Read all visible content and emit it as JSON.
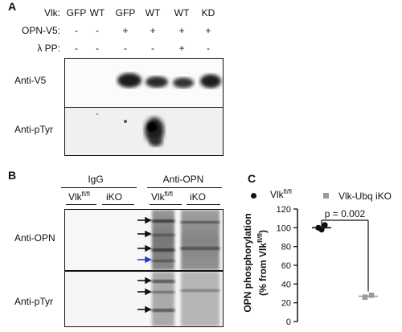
{
  "panel_a": {
    "letter": "A",
    "row_labels": {
      "vlk": "Vlk:",
      "opn": "OPN-V5:",
      "pp": "λ PP:"
    },
    "lanes": [
      {
        "vlk": "GFP",
        "opn": "-",
        "pp": "-"
      },
      {
        "vlk": "WT",
        "opn": "-",
        "pp": "-"
      },
      {
        "vlk": "GFP",
        "opn": "+",
        "pp": "-"
      },
      {
        "vlk": "WT",
        "opn": "+",
        "pp": "-"
      },
      {
        "vlk": "WT",
        "opn": "+",
        "pp": "+"
      },
      {
        "vlk": "KD",
        "opn": "+",
        "pp": "-"
      }
    ],
    "blot_labels": {
      "v5": "Anti-V5",
      "ptyr": "Anti-pTyr"
    }
  },
  "panel_b": {
    "letter": "B",
    "group_igg": "IgG",
    "group_anti_opn": "Anti-OPN",
    "sub_vlk": "Vlk",
    "sub_vlk_sup": "fl/fl",
    "sub_iko": "iKO",
    "blot_labels": {
      "opn": "Anti-OPN",
      "ptyr": "Anti-pTyr"
    }
  },
  "panel_c": {
    "letter": "C",
    "legend": {
      "s1_prefix": "Vlk",
      "s1_sup": "fl/fl",
      "s2": "Vlk-Ubq iKO"
    },
    "ylabel_line1": "OPN phosphorylation",
    "ylabel_line2_prefix": "(% from Vlk",
    "ylabel_line2_sup": "fl/fl",
    "ylabel_line2_suffix": ")",
    "pvalue": "p = 0.002",
    "colors": {
      "s1": "#111111",
      "s2": "#9a9a9a"
    }
  },
  "chart_data": {
    "type": "scatter",
    "ylim": [
      0,
      120
    ],
    "yticks": [
      "0",
      "20",
      "40",
      "60",
      "80",
      "100",
      "120"
    ],
    "series": [
      {
        "name": "Vlkfl/fl",
        "values": [
          100,
          98,
          103
        ],
        "mean": 100
      },
      {
        "name": "Vlk-Ubq iKO",
        "values": [
          26,
          28
        ],
        "mean": 27
      }
    ],
    "annotation": "p = 0.002"
  }
}
